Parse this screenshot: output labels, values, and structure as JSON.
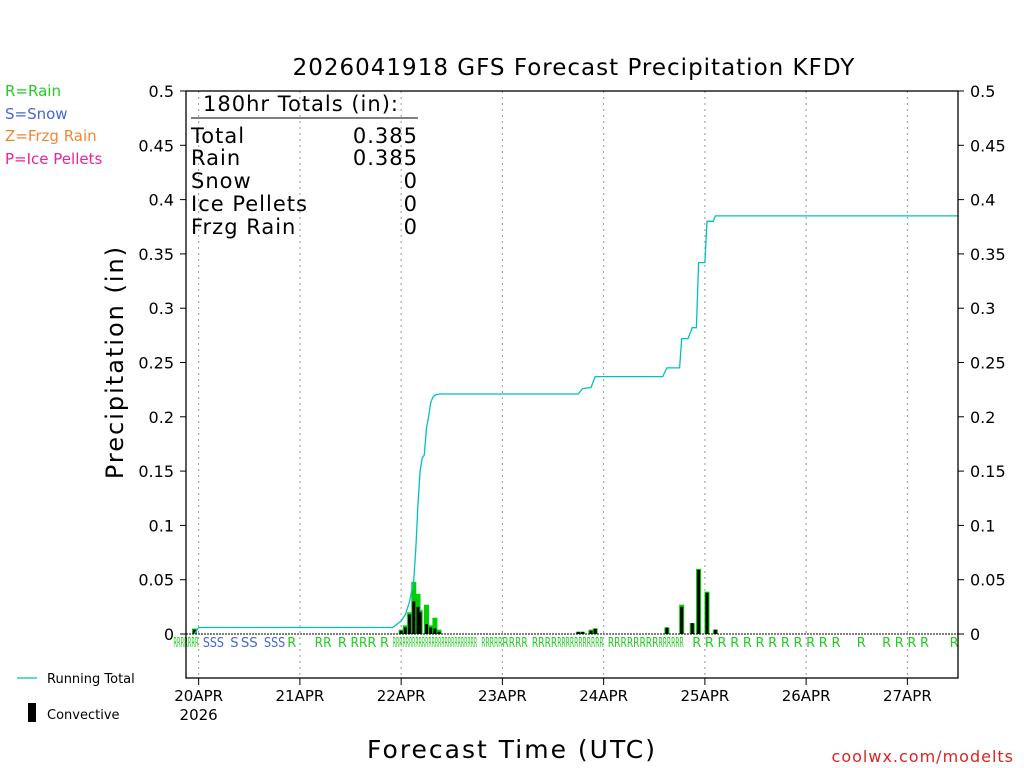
{
  "legend_types": [
    {
      "text": "R=Rain",
      "color": "#22cc22"
    },
    {
      "text": "S=Snow",
      "color": "#4466dd"
    },
    {
      "text": "Z=Frzg Rain",
      "color": "#ee8833"
    },
    {
      "text": "P=Ice Pellets",
      "color": "#ee2299"
    }
  ],
  "legend_series": {
    "running_total": "Running Total",
    "convective": "Convective"
  },
  "colors": {
    "running_total": "#00c0c0",
    "precip": "#00d000",
    "convective": "#000000"
  },
  "totals": {
    "header": "180hr Totals (in):",
    "rows": [
      {
        "label": "Total",
        "value": "0.385"
      },
      {
        "label": "Rain",
        "value": "0.385"
      },
      {
        "label": "Snow",
        "value": "0"
      },
      {
        "label": "Ice Pellets",
        "value": "0"
      },
      {
        "label": "Frzg Rain",
        "value": "0"
      }
    ]
  },
  "credit": "coolwx.com/modelts",
  "chart_data": {
    "type": "bar",
    "title": "2026041918 GFS Forecast Precipitation KFDY",
    "xlabel": "Forecast Time (UTC)",
    "ylabel": "Precipitation (in)",
    "ylim": [
      0,
      0.5
    ],
    "xlim_hours": [
      -3,
      180
    ],
    "yticks": [
      "0",
      "0.05",
      "0.1",
      "0.15",
      "0.2",
      "0.25",
      "0.3",
      "0.35",
      "0.4",
      "0.45",
      "0.5"
    ],
    "xticks": [
      {
        "hour": 0,
        "label": "20APR",
        "sublabel": "2026"
      },
      {
        "hour": 24,
        "label": "21APR"
      },
      {
        "hour": 48,
        "label": "22APR"
      },
      {
        "hour": 72,
        "label": "23APR"
      },
      {
        "hour": 96,
        "label": "24APR"
      },
      {
        "hour": 120,
        "label": "25APR"
      },
      {
        "hour": 144,
        "label": "26APR"
      },
      {
        "hour": 168,
        "label": "27APR"
      }
    ],
    "running_total": [
      [
        -1,
        0
      ],
      [
        -0.5,
        0.003
      ],
      [
        0,
        0.006
      ],
      [
        46,
        0.006
      ],
      [
        48,
        0.012
      ],
      [
        49,
        0.018
      ],
      [
        50,
        0.03
      ],
      [
        51,
        0.05
      ],
      [
        51.5,
        0.08
      ],
      [
        52,
        0.12
      ],
      [
        52.5,
        0.15
      ],
      [
        53,
        0.162
      ],
      [
        53.5,
        0.165
      ],
      [
        54,
        0.19
      ],
      [
        54.5,
        0.2
      ],
      [
        55,
        0.213
      ],
      [
        55.5,
        0.218
      ],
      [
        56,
        0.22
      ],
      [
        57,
        0.221
      ],
      [
        90,
        0.221
      ],
      [
        91,
        0.226
      ],
      [
        93,
        0.227
      ],
      [
        94,
        0.237
      ],
      [
        110,
        0.237
      ],
      [
        111,
        0.245
      ],
      [
        114,
        0.245
      ],
      [
        114.5,
        0.272
      ],
      [
        116,
        0.272
      ],
      [
        117,
        0.282
      ],
      [
        118,
        0.282
      ],
      [
        118.5,
        0.342
      ],
      [
        120,
        0.342
      ],
      [
        120.5,
        0.38
      ],
      [
        122,
        0.38
      ],
      [
        122.5,
        0.385
      ],
      [
        180,
        0.385
      ]
    ],
    "series": [
      {
        "name": "Total precipitation",
        "hours": [
          -1,
          48,
          49,
          50,
          51,
          52,
          52.5,
          53,
          54,
          55,
          56,
          57,
          90,
          91,
          93,
          94,
          111,
          114.5,
          117,
          118.5,
          120.5,
          122.5
        ],
        "values": [
          0.005,
          0.004,
          0.008,
          0.02,
          0.048,
          0.037,
          0.022,
          0.0,
          0.027,
          0.008,
          0.015,
          0.004,
          0.002,
          0.002,
          0.004,
          0.005,
          0.006,
          0.027,
          0.01,
          0.06,
          0.039,
          0.004
        ]
      },
      {
        "name": "Convective",
        "hours": [
          -1,
          48,
          49,
          50,
          51,
          52,
          52.5,
          53,
          54,
          55,
          56,
          57,
          90,
          91,
          93,
          94,
          111,
          114.5,
          117,
          118.5,
          120.5,
          122.5
        ],
        "values": [
          0.004,
          0.003,
          0.006,
          0.018,
          0.03,
          0.025,
          0.02,
          0.0,
          0.009,
          0.006,
          0.005,
          0.002,
          0.002,
          0.002,
          0.003,
          0.005,
          0.006,
          0.025,
          0.01,
          0.059,
          0.038,
          0.004
        ]
      }
    ],
    "ptype_marks": [
      {
        "hour": -6,
        "label": "RRRRRRR",
        "kind": "rain",
        "fit_hours": 6
      },
      {
        "hour": 1,
        "label": "SSS",
        "kind": "snow",
        "fit_hours": 5
      },
      {
        "hour": 7.5,
        "label": "S",
        "kind": "snow",
        "fit_hours": 2
      },
      {
        "hour": 10,
        "label": "SS",
        "kind": "snow",
        "fit_hours": 4
      },
      {
        "hour": 15.5,
        "label": "SSS",
        "kind": "snow",
        "fit_hours": 5
      },
      {
        "hour": 21,
        "label": "R",
        "kind": "rain",
        "fit_hours": 2
      },
      {
        "hour": 27.5,
        "label": "RR",
        "kind": "rain",
        "fit_hours": 4
      },
      {
        "hour": 33,
        "label": "R",
        "kind": "rain",
        "fit_hours": 2
      },
      {
        "hour": 36,
        "label": "RR",
        "kind": "rain",
        "fit_hours": 4
      },
      {
        "hour": 40,
        "label": "R",
        "kind": "rain",
        "fit_hours": 2
      },
      {
        "hour": 43,
        "label": "R",
        "kind": "rain",
        "fit_hours": 2
      },
      {
        "hour": 46,
        "label": "RRRRRRRRRRRRRRRRRRRRRRRRRR",
        "kind": "rain",
        "fit_hours": 20
      },
      {
        "hour": 67,
        "label": "RRRRR",
        "kind": "rain",
        "fit_hours": 5
      },
      {
        "hour": 72,
        "label": "RRRR",
        "kind": "rain",
        "fit_hours": 6
      },
      {
        "hour": 79,
        "label": "RRRR",
        "kind": "rain",
        "fit_hours": 6
      },
      {
        "hour": 85,
        "label": "RRRRRRRRRRR",
        "kind": "rain",
        "fit_hours": 11
      },
      {
        "hour": 97,
        "label": "RRRR",
        "kind": "rain",
        "fit_hours": 6
      },
      {
        "hour": 103,
        "label": "RRRR",
        "kind": "rain",
        "fit_hours": 6
      },
      {
        "hour": 109,
        "label": "RRRRRR",
        "kind": "rain",
        "fit_hours": 6
      },
      {
        "hour": 117,
        "label": "R",
        "kind": "rain",
        "fit_hours": 2
      },
      {
        "hour": 120,
        "label": "R",
        "kind": "rain",
        "fit_hours": 2
      },
      {
        "hour": 123,
        "label": "R",
        "kind": "rain",
        "fit_hours": 2
      },
      {
        "hour": 126,
        "label": "R",
        "kind": "rain",
        "fit_hours": 2
      },
      {
        "hour": 129,
        "label": "R",
        "kind": "rain",
        "fit_hours": 2
      },
      {
        "hour": 132,
        "label": "R",
        "kind": "rain",
        "fit_hours": 2
      },
      {
        "hour": 135,
        "label": "R",
        "kind": "rain",
        "fit_hours": 2
      },
      {
        "hour": 138,
        "label": "R",
        "kind": "rain",
        "fit_hours": 2
      },
      {
        "hour": 141,
        "label": "R",
        "kind": "rain",
        "fit_hours": 2
      },
      {
        "hour": 144,
        "label": "R",
        "kind": "rain",
        "fit_hours": 2
      },
      {
        "hour": 147,
        "label": "R",
        "kind": "rain",
        "fit_hours": 2
      },
      {
        "hour": 150,
        "label": "R",
        "kind": "rain",
        "fit_hours": 2
      },
      {
        "hour": 156,
        "label": "R",
        "kind": "rain",
        "fit_hours": 2
      },
      {
        "hour": 162,
        "label": "R",
        "kind": "rain",
        "fit_hours": 2
      },
      {
        "hour": 165,
        "label": "R",
        "kind": "rain",
        "fit_hours": 2
      },
      {
        "hour": 168,
        "label": "R",
        "kind": "rain",
        "fit_hours": 2
      },
      {
        "hour": 171,
        "label": "R",
        "kind": "rain",
        "fit_hours": 2
      },
      {
        "hour": 178,
        "label": "R",
        "kind": "rain",
        "fit_hours": 2
      }
    ]
  }
}
